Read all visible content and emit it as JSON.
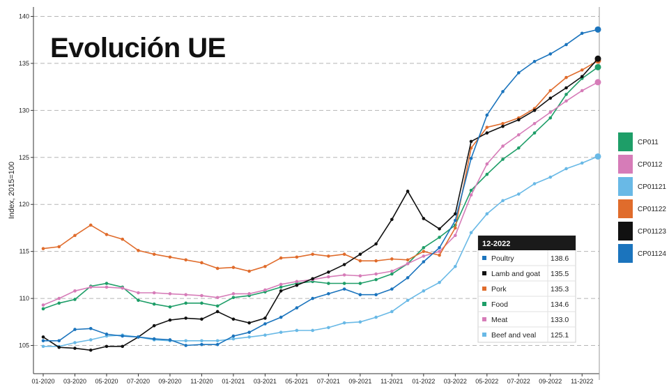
{
  "chart_data": {
    "type": "line",
    "title": "Evolución UE",
    "ylabel": "Index, 2015=100",
    "xlabel": "",
    "ylim": [
      102,
      141
    ],
    "yticks": [
      105,
      110,
      115,
      120,
      125,
      130,
      135,
      140
    ],
    "x": [
      "01-2020",
      "02-2020",
      "03-2020",
      "04-2020",
      "05-2020",
      "06-2020",
      "07-2020",
      "08-2020",
      "09-2020",
      "10-2020",
      "11-2020",
      "12-2020",
      "01-2021",
      "02-2021",
      "03-2021",
      "04-2021",
      "05-2021",
      "06-2021",
      "07-2021",
      "08-2021",
      "09-2021",
      "10-2021",
      "11-2021",
      "12-2021",
      "01-2022",
      "02-2022",
      "03-2022",
      "04-2022",
      "05-2022",
      "06-2022",
      "07-2022",
      "08-2022",
      "09-2022",
      "10-2022",
      "11-2022",
      "12-2022"
    ],
    "xtick_labels": [
      "01-2020",
      "03-2020",
      "05-2020",
      "07-2020",
      "09-2020",
      "11-2020",
      "01-2021",
      "03-2021",
      "05-2021",
      "07-2021",
      "09-2021",
      "11-2021",
      "01-2022",
      "03-2022",
      "05-2022",
      "07-2022",
      "09-2022",
      "11-2022"
    ],
    "grid": {
      "horizontal": true,
      "vertical": false
    },
    "legend_position": "right",
    "series": [
      {
        "name": "CP011",
        "color": "#1e9e68",
        "values": [
          108.9,
          109.5,
          109.9,
          111.3,
          111.6,
          111.2,
          109.8,
          109.4,
          109.1,
          109.5,
          109.5,
          109.2,
          110.1,
          110.3,
          110.7,
          111.2,
          111.6,
          111.8,
          111.6,
          111.6,
          111.6,
          112.0,
          112.6,
          113.7,
          115.4,
          116.5,
          117.8,
          121.5,
          123.2,
          124.8,
          126.0,
          127.6,
          129.2,
          131.7,
          133.4,
          134.6
        ]
      },
      {
        "name": "CP0112",
        "color": "#d67cb8",
        "values": [
          109.3,
          110.0,
          110.8,
          111.2,
          111.2,
          111.1,
          110.6,
          110.6,
          110.5,
          110.4,
          110.3,
          110.1,
          110.5,
          110.5,
          110.9,
          111.5,
          111.8,
          112.0,
          112.3,
          112.5,
          112.4,
          112.6,
          112.9,
          113.7,
          114.5,
          115.0,
          116.7,
          121.0,
          124.3,
          126.2,
          127.4,
          128.6,
          129.8,
          131.0,
          132.1,
          133.0
        ]
      },
      {
        "name": "CP01121",
        "color": "#69b9e6",
        "values": [
          104.9,
          104.9,
          105.3,
          105.6,
          106.0,
          106.1,
          105.9,
          105.6,
          105.5,
          105.5,
          105.5,
          105.5,
          105.7,
          105.9,
          106.1,
          106.4,
          106.6,
          106.6,
          106.9,
          107.4,
          107.5,
          108.0,
          108.6,
          109.8,
          110.8,
          111.7,
          113.4,
          117.0,
          119.0,
          120.4,
          121.1,
          122.2,
          122.9,
          123.8,
          124.4,
          125.1
        ]
      },
      {
        "name": "CP01122",
        "color": "#e06c2c",
        "values": [
          115.3,
          115.5,
          116.7,
          117.8,
          116.8,
          116.3,
          115.1,
          114.7,
          114.4,
          114.1,
          113.8,
          113.2,
          113.3,
          112.9,
          113.4,
          114.3,
          114.4,
          114.7,
          114.5,
          114.7,
          114.0,
          114.0,
          114.2,
          114.1,
          115.0,
          114.6,
          117.5,
          126.0,
          128.2,
          128.6,
          129.2,
          130.2,
          132.1,
          133.5,
          134.3,
          135.3
        ]
      },
      {
        "name": "CP01123",
        "color": "#111111",
        "values": [
          105.9,
          104.8,
          104.7,
          104.5,
          104.9,
          104.9,
          105.9,
          107.1,
          107.7,
          107.9,
          107.8,
          108.6,
          107.8,
          107.4,
          107.9,
          110.8,
          111.4,
          112.1,
          112.8,
          113.6,
          114.7,
          115.8,
          118.4,
          121.4,
          118.5,
          117.4,
          119.0,
          126.7,
          127.6,
          128.3,
          129.0,
          130.0,
          131.3,
          132.4,
          133.6,
          135.5
        ]
      },
      {
        "name": "CP01124",
        "color": "#1b74bd",
        "values": [
          105.5,
          105.5,
          106.7,
          106.8,
          106.2,
          106.0,
          105.9,
          105.7,
          105.6,
          105.0,
          105.1,
          105.1,
          106.0,
          106.4,
          107.3,
          108.0,
          109.0,
          110.0,
          110.5,
          111.0,
          110.4,
          110.4,
          111.0,
          112.2,
          113.9,
          115.4,
          118.3,
          124.9,
          129.5,
          132.0,
          134.0,
          135.2,
          136.0,
          137.0,
          138.2,
          138.6
        ]
      }
    ],
    "tooltip": {
      "header": "12-2022",
      "rows": [
        {
          "label": "Poultry",
          "value": "138.6",
          "color": "#1b74bd"
        },
        {
          "label": "Lamb and goat",
          "value": "135.5",
          "color": "#111111"
        },
        {
          "label": "Pork",
          "value": "135.3",
          "color": "#e06c2c"
        },
        {
          "label": "Food",
          "value": "134.6",
          "color": "#1e9e68"
        },
        {
          "label": "Meat",
          "value": "133.0",
          "color": "#d67cb8"
        },
        {
          "label": "Beef and veal",
          "value": "125.1",
          "color": "#69b9e6"
        }
      ]
    }
  }
}
